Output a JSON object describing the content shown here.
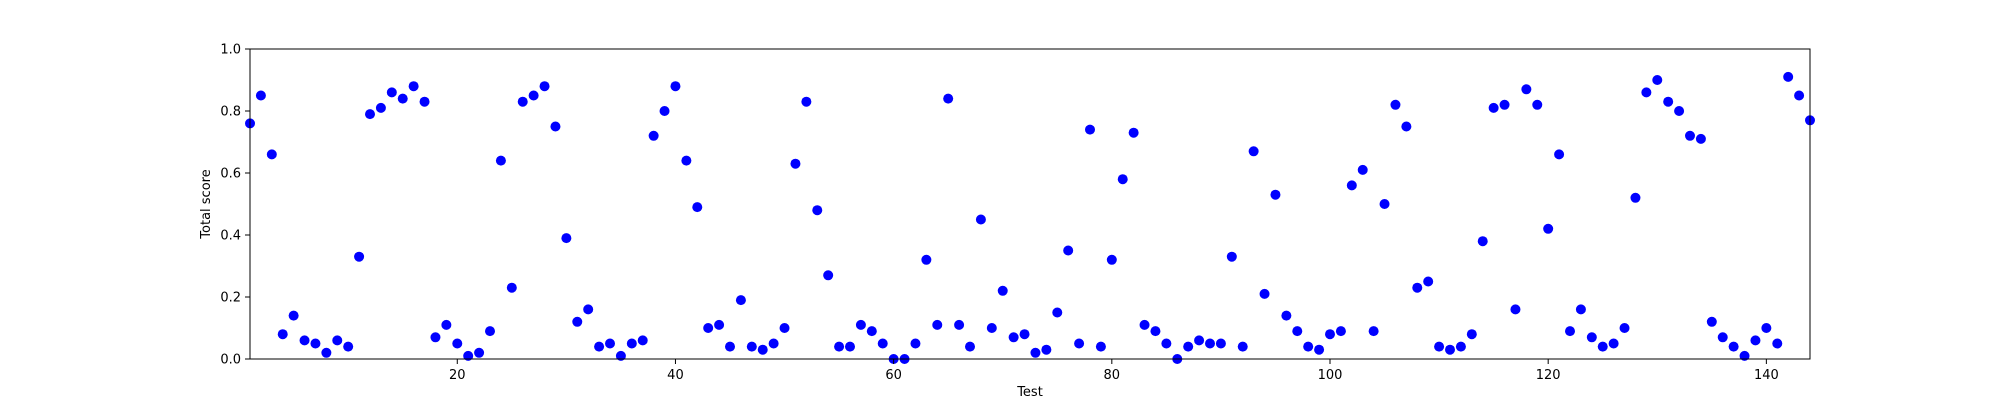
{
  "chart_data": {
    "type": "scatter",
    "xlabel": "Test",
    "ylabel": "Total score",
    "xlim": [
      1,
      144
    ],
    "ylim": [
      0,
      1
    ],
    "xticks": [
      20,
      40,
      60,
      80,
      100,
      120,
      140
    ],
    "yticks": [
      0.0,
      0.2,
      0.4,
      0.6,
      0.8,
      1.0
    ],
    "ytick_labels": [
      "0.0",
      "0.2",
      "0.4",
      "0.6",
      "0.8",
      "1.0"
    ],
    "grid": false,
    "marker_color": "#0000ff",
    "x": [
      1,
      2,
      3,
      4,
      5,
      6,
      7,
      8,
      9,
      10,
      11,
      12,
      13,
      14,
      15,
      16,
      17,
      18,
      19,
      20,
      21,
      22,
      23,
      24,
      25,
      26,
      27,
      28,
      29,
      30,
      31,
      32,
      33,
      34,
      35,
      36,
      37,
      38,
      39,
      40,
      41,
      42,
      43,
      44,
      45,
      46,
      47,
      48,
      49,
      50,
      51,
      52,
      53,
      54,
      55,
      56,
      57,
      58,
      59,
      60,
      61,
      62,
      63,
      64,
      65,
      66,
      67,
      68,
      69,
      70,
      71,
      72,
      73,
      74,
      75,
      76,
      77,
      78,
      79,
      80,
      81,
      82,
      83,
      84,
      85,
      86,
      87,
      88,
      89,
      90,
      91,
      92,
      93,
      94,
      95,
      96,
      97,
      98,
      99,
      100,
      101,
      102,
      103,
      104,
      105,
      106,
      107,
      108,
      109,
      110,
      111,
      112,
      113,
      114,
      115,
      116,
      117,
      118,
      119,
      120,
      121,
      122,
      123,
      124,
      125,
      126,
      127,
      128,
      129,
      130,
      131,
      132,
      133,
      134,
      135,
      136,
      137,
      138,
      139,
      140,
      141,
      142,
      143,
      144
    ],
    "y": [
      0.76,
      0.85,
      0.66,
      0.08,
      0.14,
      0.06,
      0.05,
      0.02,
      0.06,
      0.04,
      0.33,
      0.79,
      0.81,
      0.86,
      0.84,
      0.88,
      0.83,
      0.07,
      0.11,
      0.05,
      0.01,
      0.02,
      0.09,
      0.64,
      0.23,
      0.83,
      0.85,
      0.88,
      0.75,
      0.39,
      0.12,
      0.16,
      0.04,
      0.05,
      0.01,
      0.05,
      0.06,
      0.72,
      0.8,
      0.88,
      0.64,
      0.49,
      0.1,
      0.11,
      0.04,
      0.19,
      0.04,
      0.03,
      0.05,
      0.1,
      0.63,
      0.83,
      0.48,
      0.27,
      0.04,
      0.04,
      0.11,
      0.09,
      0.05,
      0.0,
      0.0,
      0.05,
      0.32,
      0.11,
      0.84,
      0.11,
      0.04,
      0.45,
      0.1,
      0.22,
      0.07,
      0.08,
      0.02,
      0.03,
      0.15,
      0.35,
      0.05,
      0.74,
      0.04,
      0.32,
      0.58,
      0.73,
      0.11,
      0.09,
      0.05,
      0.0,
      0.04,
      0.06,
      0.05,
      0.05,
      0.33,
      0.04,
      0.67,
      0.21,
      0.53,
      0.14,
      0.09,
      0.04,
      0.03,
      0.08,
      0.09,
      0.56,
      0.61,
      0.09,
      0.5,
      0.82,
      0.75,
      0.23,
      0.25,
      0.04,
      0.03,
      0.04,
      0.08,
      0.38,
      0.81,
      0.82,
      0.16,
      0.87,
      0.82,
      0.42,
      0.66,
      0.09,
      0.16,
      0.07,
      0.04,
      0.05,
      0.1,
      0.52,
      0.86,
      0.9,
      0.83,
      0.8,
      0.72,
      0.71,
      0.12,
      0.07,
      0.04,
      0.01,
      0.06,
      0.1,
      0.05,
      0.91,
      0.85,
      0.77
    ]
  }
}
